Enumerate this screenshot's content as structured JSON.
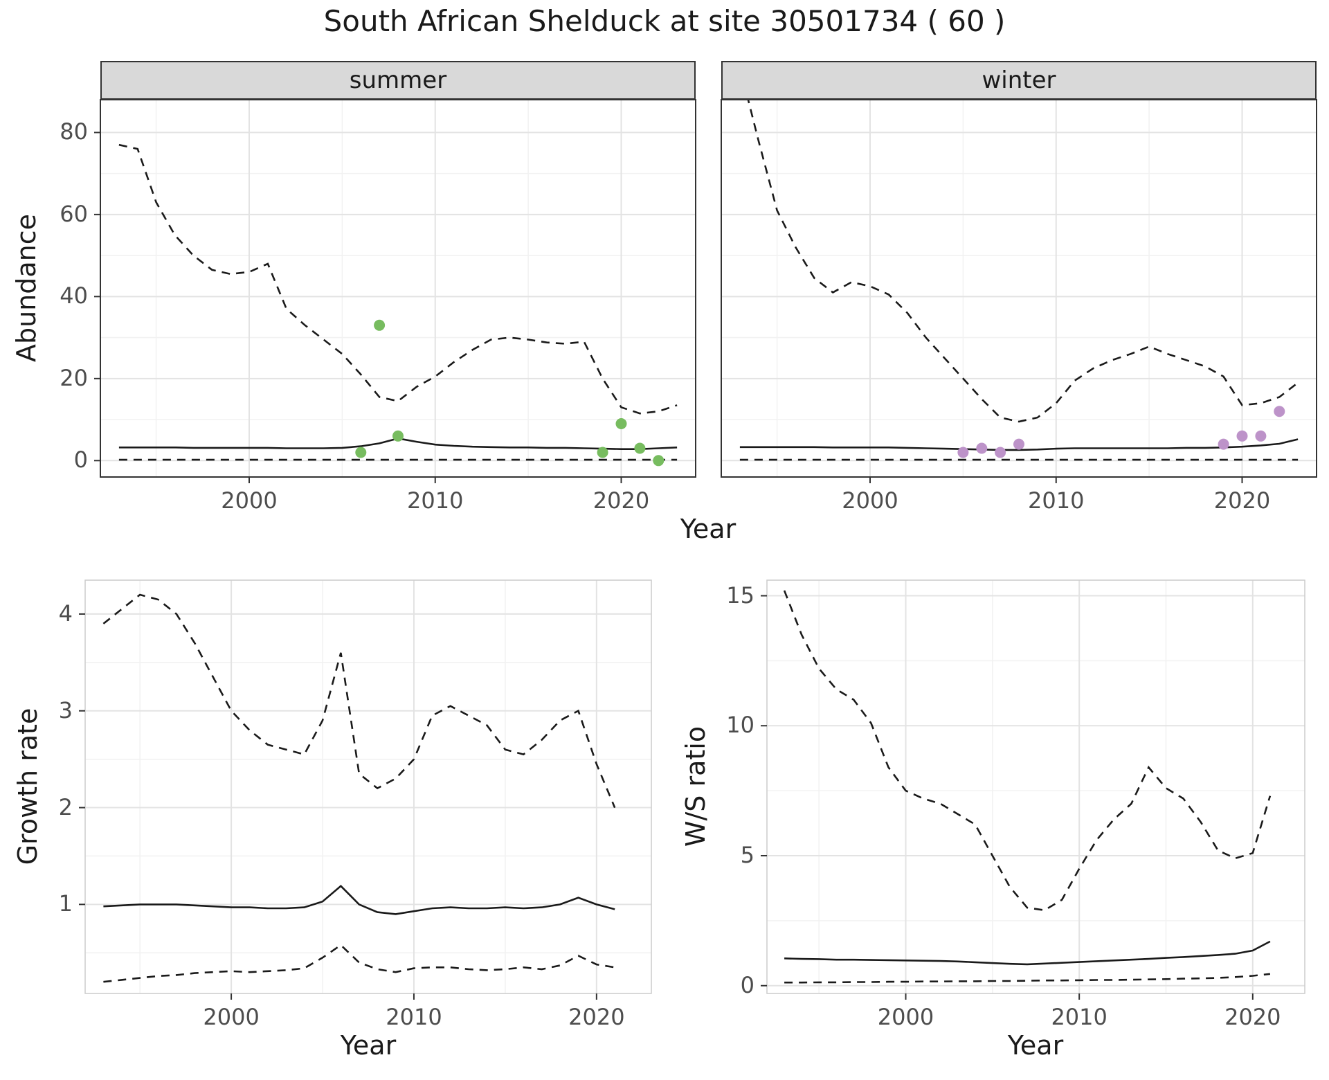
{
  "title": "South African Shelduck at site 30501734 ( 60 )",
  "styles": {
    "summer_point_color": "#77bc5f",
    "winter_point_color": "#bd93c9",
    "line_color": "#1a1a1a",
    "strip_bg": "#d9d9d9",
    "grid_major": "#e3e3e3",
    "grid_minor": "#f2f2f2",
    "tick_label_color": "#4d4d4d"
  },
  "chart_data": [
    {
      "id": "abundance-summer",
      "type": "line",
      "facet": "summer",
      "ylabel": "Abundance",
      "xlabel": "Year",
      "xlim": [
        1992,
        2024
      ],
      "ylim": [
        -4,
        88
      ],
      "xticks": [
        2000,
        2010,
        2020
      ],
      "yticks": [
        0,
        20,
        40,
        60,
        80
      ],
      "xminor": [
        1995,
        2005,
        2015
      ],
      "yminor": [
        10,
        30,
        50,
        70
      ],
      "x": [
        1993,
        1994,
        1995,
        1996,
        1997,
        1998,
        1999,
        2000,
        2001,
        2002,
        2003,
        2004,
        2005,
        2006,
        2007,
        2008,
        2009,
        2010,
        2011,
        2012,
        2013,
        2014,
        2015,
        2016,
        2017,
        2018,
        2019,
        2020,
        2021,
        2022,
        2023
      ],
      "series": [
        {
          "name": "upper-ci",
          "style": "dashed",
          "values": [
            77,
            76,
            63,
            55,
            50,
            46.5,
            45.5,
            46,
            48,
            37,
            33,
            29.5,
            26,
            21,
            15.5,
            14.5,
            18,
            20.5,
            24,
            27,
            29.5,
            30,
            29.5,
            28.8,
            28.5,
            29,
            20,
            13,
            11.5,
            12,
            13.5
          ]
        },
        {
          "name": "median",
          "style": "solid",
          "values": [
            3.2,
            3.2,
            3.2,
            3.2,
            3.1,
            3.1,
            3.1,
            3.1,
            3.1,
            3.0,
            3.0,
            3.0,
            3.1,
            3.5,
            4.2,
            5.4,
            4.6,
            3.9,
            3.6,
            3.4,
            3.3,
            3.2,
            3.2,
            3.1,
            3.1,
            3.0,
            2.9,
            2.8,
            2.8,
            3.0,
            3.2
          ]
        },
        {
          "name": "lower-ci",
          "style": "dashed",
          "values": [
            0.2,
            0.2,
            0.2,
            0.2,
            0.2,
            0.2,
            0.2,
            0.2,
            0.2,
            0.2,
            0.2,
            0.2,
            0.2,
            0.2,
            0.2,
            0.2,
            0.2,
            0.2,
            0.2,
            0.2,
            0.2,
            0.2,
            0.2,
            0.2,
            0.2,
            0.2,
            0.2,
            0.2,
            0.2,
            0.2,
            0.2
          ]
        }
      ],
      "points": {
        "name": "observed-counts",
        "color_key": "summer_point_color",
        "x": [
          2006,
          2007,
          2008,
          2019,
          2020,
          2021,
          2022
        ],
        "y": [
          2,
          33,
          6,
          2,
          9,
          3,
          0
        ]
      }
    },
    {
      "id": "abundance-winter",
      "type": "line",
      "facet": "winter",
      "ylabel": "Abundance",
      "xlabel": "Year",
      "xlim": [
        1992,
        2024
      ],
      "ylim": [
        -4,
        88
      ],
      "xticks": [
        2000,
        2010,
        2020
      ],
      "yticks": [
        0,
        20,
        40,
        60,
        80
      ],
      "xminor": [
        1995,
        2005,
        2015
      ],
      "yminor": [
        10,
        30,
        50,
        70
      ],
      "x": [
        1993,
        1994,
        1995,
        1996,
        1997,
        1998,
        1999,
        2000,
        2001,
        2002,
        2003,
        2004,
        2005,
        2006,
        2007,
        2008,
        2009,
        2010,
        2011,
        2012,
        2013,
        2014,
        2015,
        2016,
        2017,
        2018,
        2019,
        2020,
        2021,
        2022,
        2023
      ],
      "series": [
        {
          "name": "upper-ci",
          "style": "dashed",
          "values": [
            96,
            78,
            61,
            52,
            44.5,
            41,
            43.5,
            42.5,
            40.5,
            36,
            30,
            25,
            20,
            15,
            10.5,
            9.5,
            10.5,
            14,
            19.5,
            22.5,
            24.5,
            26,
            27.8,
            26,
            24.5,
            23,
            20.5,
            13.5,
            14,
            15.5,
            19
          ]
        },
        {
          "name": "median",
          "style": "solid",
          "values": [
            3.3,
            3.3,
            3.3,
            3.3,
            3.3,
            3.2,
            3.2,
            3.2,
            3.2,
            3.1,
            3.0,
            2.9,
            2.8,
            2.7,
            2.6,
            2.6,
            2.7,
            2.9,
            3.0,
            3.0,
            3.0,
            3.0,
            3.0,
            3.0,
            3.1,
            3.1,
            3.2,
            3.4,
            3.7,
            4.1,
            5.2
          ]
        },
        {
          "name": "lower-ci",
          "style": "dashed",
          "values": [
            0.2,
            0.2,
            0.2,
            0.2,
            0.2,
            0.2,
            0.2,
            0.2,
            0.2,
            0.2,
            0.2,
            0.2,
            0.2,
            0.2,
            0.2,
            0.2,
            0.2,
            0.2,
            0.2,
            0.2,
            0.2,
            0.2,
            0.2,
            0.2,
            0.2,
            0.2,
            0.2,
            0.2,
            0.2,
            0.2,
            0.2
          ]
        }
      ],
      "points": {
        "name": "observed-counts",
        "color_key": "winter_point_color",
        "x": [
          2005,
          2006,
          2007,
          2008,
          2019,
          2020,
          2021,
          2022
        ],
        "y": [
          2,
          3,
          2,
          4,
          4,
          6,
          6,
          12
        ]
      }
    },
    {
      "id": "growth-rate",
      "type": "line",
      "facet": "",
      "ylabel": "Growth rate",
      "xlabel": "Year",
      "xlim": [
        1992,
        2023
      ],
      "ylim": [
        0.08,
        4.35
      ],
      "xticks": [
        2000,
        2010,
        2020
      ],
      "yticks": [
        1,
        2,
        3,
        4
      ],
      "xminor": [
        1995,
        2005,
        2015
      ],
      "yminor": [
        0.5,
        1.5,
        2.5,
        3.5
      ],
      "x": [
        1993,
        1994,
        1995,
        1996,
        1997,
        1998,
        1999,
        2000,
        2001,
        2002,
        2003,
        2004,
        2005,
        2006,
        2007,
        2008,
        2009,
        2010,
        2011,
        2012,
        2013,
        2014,
        2015,
        2016,
        2017,
        2018,
        2019,
        2020,
        2021
      ],
      "series": [
        {
          "name": "upper-ci",
          "style": "dashed",
          "values": [
            3.9,
            4.05,
            4.2,
            4.15,
            4.0,
            3.7,
            3.35,
            3.0,
            2.8,
            2.65,
            2.6,
            2.55,
            2.9,
            3.6,
            2.35,
            2.2,
            2.3,
            2.5,
            2.95,
            3.05,
            2.95,
            2.85,
            2.6,
            2.55,
            2.7,
            2.9,
            3.0,
            2.45,
            2.0
          ]
        },
        {
          "name": "median",
          "style": "solid",
          "values": [
            0.98,
            0.99,
            1.0,
            1.0,
            1.0,
            0.99,
            0.98,
            0.97,
            0.97,
            0.96,
            0.96,
            0.97,
            1.03,
            1.19,
            1.0,
            0.92,
            0.9,
            0.93,
            0.96,
            0.97,
            0.96,
            0.96,
            0.97,
            0.96,
            0.97,
            1.0,
            1.07,
            1.0,
            0.95
          ]
        },
        {
          "name": "lower-ci",
          "style": "dashed",
          "values": [
            0.2,
            0.22,
            0.24,
            0.26,
            0.27,
            0.29,
            0.3,
            0.31,
            0.3,
            0.31,
            0.32,
            0.34,
            0.45,
            0.58,
            0.4,
            0.33,
            0.3,
            0.34,
            0.35,
            0.35,
            0.33,
            0.32,
            0.33,
            0.35,
            0.33,
            0.37,
            0.47,
            0.38,
            0.35
          ]
        }
      ]
    },
    {
      "id": "ws-ratio",
      "type": "line",
      "facet": "",
      "ylabel": "W/S ratio",
      "xlabel": "Year",
      "xlim": [
        1992,
        2023
      ],
      "ylim": [
        -0.3,
        15.6
      ],
      "xticks": [
        2000,
        2010,
        2020
      ],
      "yticks": [
        0,
        5,
        10,
        15
      ],
      "xminor": [
        1995,
        2005,
        2015
      ],
      "yminor": [
        2.5,
        7.5,
        12.5
      ],
      "x": [
        1993,
        1994,
        1995,
        1996,
        1997,
        1998,
        1999,
        2000,
        2001,
        2002,
        2003,
        2004,
        2005,
        2006,
        2007,
        2008,
        2009,
        2010,
        2011,
        2012,
        2013,
        2014,
        2015,
        2016,
        2017,
        2018,
        2019,
        2020,
        2021
      ],
      "series": [
        {
          "name": "upper-ci",
          "style": "dashed",
          "values": [
            15.2,
            13.5,
            12.2,
            11.4,
            11.0,
            10.1,
            8.4,
            7.5,
            7.2,
            7.0,
            6.6,
            6.2,
            5.0,
            3.8,
            3.0,
            2.9,
            3.3,
            4.5,
            5.6,
            6.4,
            7.0,
            8.4,
            7.6,
            7.2,
            6.3,
            5.2,
            4.9,
            5.1,
            7.3
          ]
        },
        {
          "name": "median",
          "style": "solid",
          "values": [
            1.05,
            1.03,
            1.02,
            1.0,
            1.0,
            0.99,
            0.98,
            0.97,
            0.96,
            0.95,
            0.93,
            0.9,
            0.87,
            0.84,
            0.82,
            0.85,
            0.88,
            0.91,
            0.94,
            0.97,
            1.0,
            1.03,
            1.07,
            1.1,
            1.14,
            1.18,
            1.23,
            1.35,
            1.7
          ]
        },
        {
          "name": "lower-ci",
          "style": "dashed",
          "values": [
            0.12,
            0.12,
            0.13,
            0.13,
            0.14,
            0.14,
            0.15,
            0.15,
            0.16,
            0.16,
            0.17,
            0.17,
            0.18,
            0.18,
            0.19,
            0.2,
            0.2,
            0.21,
            0.22,
            0.22,
            0.23,
            0.24,
            0.25,
            0.27,
            0.28,
            0.3,
            0.33,
            0.38,
            0.45
          ]
        }
      ]
    }
  ]
}
